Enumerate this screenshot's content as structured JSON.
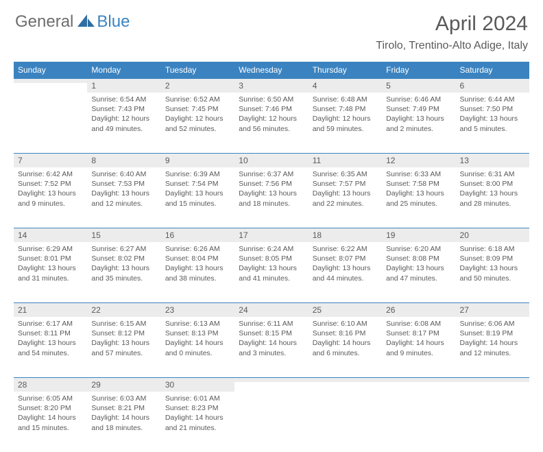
{
  "logo": {
    "general": "General",
    "blue": "Blue"
  },
  "title": "April 2024",
  "location": "Tirolo, Trentino-Alto Adige, Italy",
  "colors": {
    "header_blue": "#3b83c0",
    "daynum_bg": "#ececec",
    "text": "#595959",
    "background": "#ffffff"
  },
  "weekdays": [
    "Sunday",
    "Monday",
    "Tuesday",
    "Wednesday",
    "Thursday",
    "Friday",
    "Saturday"
  ],
  "weeks": [
    [
      {
        "num": "",
        "sunrise": "",
        "sunset": "",
        "daylight": ""
      },
      {
        "num": "1",
        "sunrise": "Sunrise: 6:54 AM",
        "sunset": "Sunset: 7:43 PM",
        "daylight": "Daylight: 12 hours and 49 minutes."
      },
      {
        "num": "2",
        "sunrise": "Sunrise: 6:52 AM",
        "sunset": "Sunset: 7:45 PM",
        "daylight": "Daylight: 12 hours and 52 minutes."
      },
      {
        "num": "3",
        "sunrise": "Sunrise: 6:50 AM",
        "sunset": "Sunset: 7:46 PM",
        "daylight": "Daylight: 12 hours and 56 minutes."
      },
      {
        "num": "4",
        "sunrise": "Sunrise: 6:48 AM",
        "sunset": "Sunset: 7:48 PM",
        "daylight": "Daylight: 12 hours and 59 minutes."
      },
      {
        "num": "5",
        "sunrise": "Sunrise: 6:46 AM",
        "sunset": "Sunset: 7:49 PM",
        "daylight": "Daylight: 13 hours and 2 minutes."
      },
      {
        "num": "6",
        "sunrise": "Sunrise: 6:44 AM",
        "sunset": "Sunset: 7:50 PM",
        "daylight": "Daylight: 13 hours and 5 minutes."
      }
    ],
    [
      {
        "num": "7",
        "sunrise": "Sunrise: 6:42 AM",
        "sunset": "Sunset: 7:52 PM",
        "daylight": "Daylight: 13 hours and 9 minutes."
      },
      {
        "num": "8",
        "sunrise": "Sunrise: 6:40 AM",
        "sunset": "Sunset: 7:53 PM",
        "daylight": "Daylight: 13 hours and 12 minutes."
      },
      {
        "num": "9",
        "sunrise": "Sunrise: 6:39 AM",
        "sunset": "Sunset: 7:54 PM",
        "daylight": "Daylight: 13 hours and 15 minutes."
      },
      {
        "num": "10",
        "sunrise": "Sunrise: 6:37 AM",
        "sunset": "Sunset: 7:56 PM",
        "daylight": "Daylight: 13 hours and 18 minutes."
      },
      {
        "num": "11",
        "sunrise": "Sunrise: 6:35 AM",
        "sunset": "Sunset: 7:57 PM",
        "daylight": "Daylight: 13 hours and 22 minutes."
      },
      {
        "num": "12",
        "sunrise": "Sunrise: 6:33 AM",
        "sunset": "Sunset: 7:58 PM",
        "daylight": "Daylight: 13 hours and 25 minutes."
      },
      {
        "num": "13",
        "sunrise": "Sunrise: 6:31 AM",
        "sunset": "Sunset: 8:00 PM",
        "daylight": "Daylight: 13 hours and 28 minutes."
      }
    ],
    [
      {
        "num": "14",
        "sunrise": "Sunrise: 6:29 AM",
        "sunset": "Sunset: 8:01 PM",
        "daylight": "Daylight: 13 hours and 31 minutes."
      },
      {
        "num": "15",
        "sunrise": "Sunrise: 6:27 AM",
        "sunset": "Sunset: 8:02 PM",
        "daylight": "Daylight: 13 hours and 35 minutes."
      },
      {
        "num": "16",
        "sunrise": "Sunrise: 6:26 AM",
        "sunset": "Sunset: 8:04 PM",
        "daylight": "Daylight: 13 hours and 38 minutes."
      },
      {
        "num": "17",
        "sunrise": "Sunrise: 6:24 AM",
        "sunset": "Sunset: 8:05 PM",
        "daylight": "Daylight: 13 hours and 41 minutes."
      },
      {
        "num": "18",
        "sunrise": "Sunrise: 6:22 AM",
        "sunset": "Sunset: 8:07 PM",
        "daylight": "Daylight: 13 hours and 44 minutes."
      },
      {
        "num": "19",
        "sunrise": "Sunrise: 6:20 AM",
        "sunset": "Sunset: 8:08 PM",
        "daylight": "Daylight: 13 hours and 47 minutes."
      },
      {
        "num": "20",
        "sunrise": "Sunrise: 6:18 AM",
        "sunset": "Sunset: 8:09 PM",
        "daylight": "Daylight: 13 hours and 50 minutes."
      }
    ],
    [
      {
        "num": "21",
        "sunrise": "Sunrise: 6:17 AM",
        "sunset": "Sunset: 8:11 PM",
        "daylight": "Daylight: 13 hours and 54 minutes."
      },
      {
        "num": "22",
        "sunrise": "Sunrise: 6:15 AM",
        "sunset": "Sunset: 8:12 PM",
        "daylight": "Daylight: 13 hours and 57 minutes."
      },
      {
        "num": "23",
        "sunrise": "Sunrise: 6:13 AM",
        "sunset": "Sunset: 8:13 PM",
        "daylight": "Daylight: 14 hours and 0 minutes."
      },
      {
        "num": "24",
        "sunrise": "Sunrise: 6:11 AM",
        "sunset": "Sunset: 8:15 PM",
        "daylight": "Daylight: 14 hours and 3 minutes."
      },
      {
        "num": "25",
        "sunrise": "Sunrise: 6:10 AM",
        "sunset": "Sunset: 8:16 PM",
        "daylight": "Daylight: 14 hours and 6 minutes."
      },
      {
        "num": "26",
        "sunrise": "Sunrise: 6:08 AM",
        "sunset": "Sunset: 8:17 PM",
        "daylight": "Daylight: 14 hours and 9 minutes."
      },
      {
        "num": "27",
        "sunrise": "Sunrise: 6:06 AM",
        "sunset": "Sunset: 8:19 PM",
        "daylight": "Daylight: 14 hours and 12 minutes."
      }
    ],
    [
      {
        "num": "28",
        "sunrise": "Sunrise: 6:05 AM",
        "sunset": "Sunset: 8:20 PM",
        "daylight": "Daylight: 14 hours and 15 minutes."
      },
      {
        "num": "29",
        "sunrise": "Sunrise: 6:03 AM",
        "sunset": "Sunset: 8:21 PM",
        "daylight": "Daylight: 14 hours and 18 minutes."
      },
      {
        "num": "30",
        "sunrise": "Sunrise: 6:01 AM",
        "sunset": "Sunset: 8:23 PM",
        "daylight": "Daylight: 14 hours and 21 minutes."
      },
      {
        "num": "",
        "sunrise": "",
        "sunset": "",
        "daylight": ""
      },
      {
        "num": "",
        "sunrise": "",
        "sunset": "",
        "daylight": ""
      },
      {
        "num": "",
        "sunrise": "",
        "sunset": "",
        "daylight": ""
      },
      {
        "num": "",
        "sunrise": "",
        "sunset": "",
        "daylight": ""
      }
    ]
  ]
}
